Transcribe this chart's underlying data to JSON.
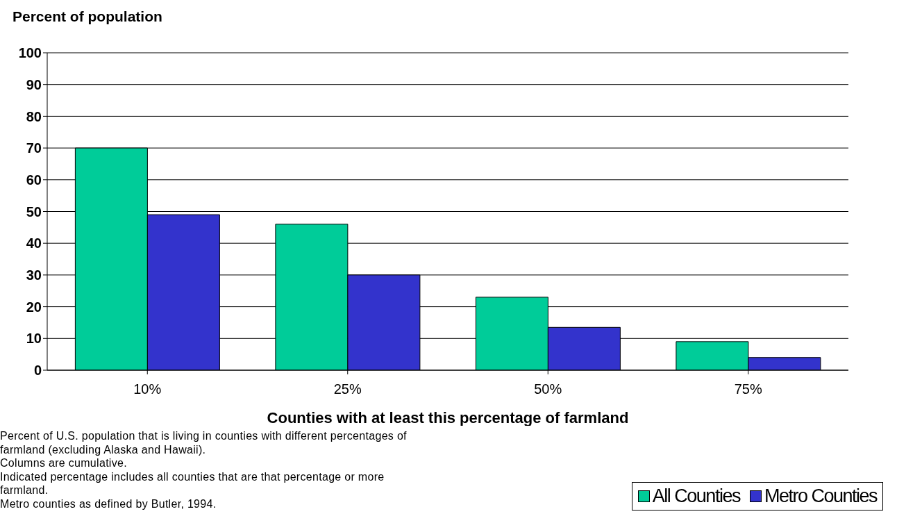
{
  "chart_data": {
    "type": "bar",
    "ylabel": "Percent of population",
    "xlabel": "Counties with at least this percentage of farmland",
    "categories": [
      "10%",
      "25%",
      "50%",
      "75%"
    ],
    "series": [
      {
        "name": "All Counties",
        "color": "#00cc99",
        "values": [
          70,
          46,
          23,
          9
        ]
      },
      {
        "name": "Metro Counties",
        "color": "#3333cc",
        "values": [
          49,
          30,
          13.5,
          4
        ]
      }
    ],
    "ylim": [
      0,
      100
    ],
    "yticks": [
      0,
      10,
      20,
      30,
      40,
      50,
      60,
      70,
      80,
      90,
      100
    ],
    "grid": "y",
    "legend": "bottom right",
    "annotations": [
      "Percent of U.S. population that is living in counties with different percentages of farmland (excluding Alaska and Hawaii).",
      "Columns are cumulative.",
      "Indicated percentage includes all counties that are that percentage or more farmland.",
      "Metro counties as defined by Butler, 1994."
    ]
  }
}
